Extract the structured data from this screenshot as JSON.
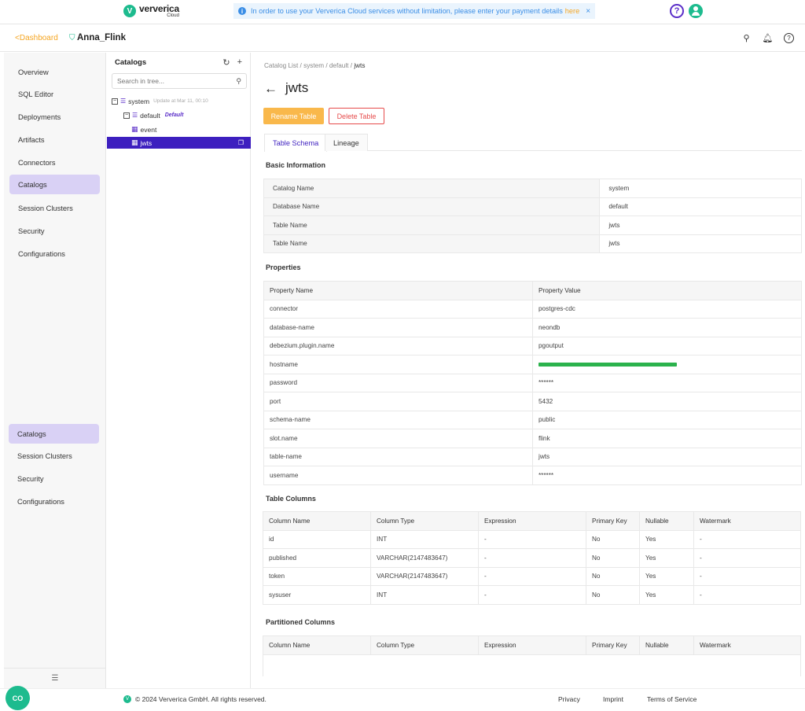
{
  "app": {
    "logo_main": "ververica",
    "logo_sub": "Cloud",
    "logo_mark": "V"
  },
  "banner": {
    "text": "In order to use your Ververica Cloud services without limitation, please enter your payment details",
    "link": "here",
    "close": "×",
    "icon": "info-icon"
  },
  "topbar": {
    "help_icon": "?",
    "avatar_icon": "user-avatar-icon"
  },
  "subheader": {
    "back_label": "Dashboard",
    "back_chevron": "<",
    "workspace_icon": "⛉",
    "workspace_name": "Anna_Flink",
    "icons": {
      "deploy": "⚲",
      "bell": "🔔︎",
      "help": "?"
    }
  },
  "nav": {
    "items": [
      "Overview",
      "SQL Editor",
      "Deployments",
      "Artifacts",
      "Connectors",
      "Catalogs",
      "Session Clusters",
      "Security",
      "Configurations"
    ],
    "dup_items": [
      "Catalogs",
      "Session Clusters",
      "Security",
      "Configurations"
    ],
    "active": "Catalogs",
    "collapse_icon": "☰"
  },
  "tree": {
    "title": "Catalogs",
    "refresh_icon": "↻",
    "add_icon": "+",
    "search_placeholder": "Search in tree...",
    "search_icon": "⚲",
    "catalog": {
      "name": "system",
      "meta": "Update at Mar 11, 00:10",
      "toggle": "−"
    },
    "database": {
      "name": "default",
      "tag": "Default",
      "toggle": "−"
    },
    "tables": [
      "event",
      "jwts"
    ],
    "selected": "jwts",
    "copy_icon": "❐"
  },
  "main": {
    "breadcrumb": [
      "Catalog List",
      "system",
      "default",
      "jwts"
    ],
    "breadcrumb_sep": "/",
    "back_arrow": "←",
    "title": "jwts",
    "rename_button": "Rename Table",
    "delete_button": "Delete Table",
    "tabs": [
      "Table Schema",
      "Lineage"
    ],
    "active_tab": "Table Schema"
  },
  "basic_info": {
    "title": "Basic Information",
    "rows": [
      {
        "key": "Catalog Name",
        "value": "system"
      },
      {
        "key": "Database Name",
        "value": "default"
      },
      {
        "key": "Table Name",
        "value": "jwts"
      },
      {
        "key": "Table Name",
        "value": "jwts"
      }
    ]
  },
  "properties": {
    "title": "Properties",
    "headers": [
      "Property Name",
      "Property Value"
    ],
    "rows": [
      {
        "name": "connector",
        "value": "postgres-cdc"
      },
      {
        "name": "database-name",
        "value": "neondb"
      },
      {
        "name": "debezium.plugin.name",
        "value": "pgoutput"
      },
      {
        "name": "hostname",
        "value": "",
        "redacted": true
      },
      {
        "name": "password",
        "value": "******"
      },
      {
        "name": "port",
        "value": "5432"
      },
      {
        "name": "schema-name",
        "value": "public"
      },
      {
        "name": "slot.name",
        "value": "flink"
      },
      {
        "name": "table-name",
        "value": "jwts"
      },
      {
        "name": "username",
        "value": "******"
      }
    ]
  },
  "table_columns": {
    "title": "Table Columns",
    "headers": [
      "Column Name",
      "Column Type",
      "Expression",
      "Primary Key",
      "Nullable",
      "Watermark"
    ],
    "rows": [
      [
        "id",
        "INT",
        "-",
        "No",
        "Yes",
        "-"
      ],
      [
        "published",
        "VARCHAR(2147483647)",
        "-",
        "No",
        "Yes",
        "-"
      ],
      [
        "token",
        "VARCHAR(2147483647)",
        "-",
        "No",
        "Yes",
        "-"
      ],
      [
        "sysuser",
        "INT",
        "-",
        "No",
        "Yes",
        "-"
      ]
    ]
  },
  "partitioned_columns": {
    "title": "Partitioned Columns",
    "headers": [
      "Column Name",
      "Column Type",
      "Expression",
      "Primary Key",
      "Nullable",
      "Watermark"
    ]
  },
  "footer": {
    "copyright": "© 2024 Ververica GmbH. All rights reserved.",
    "links": [
      "Privacy",
      "Imprint",
      "Terms of Service"
    ],
    "chat_label": "CO"
  },
  "colors": {
    "accent": "#3d1fbf",
    "active_nav": "#d9d1f5",
    "brand_green": "#1dbb8e",
    "rename_btn": "#f9b84b",
    "delete_btn": "#e64b4b",
    "redaction": "#2bb24c"
  }
}
